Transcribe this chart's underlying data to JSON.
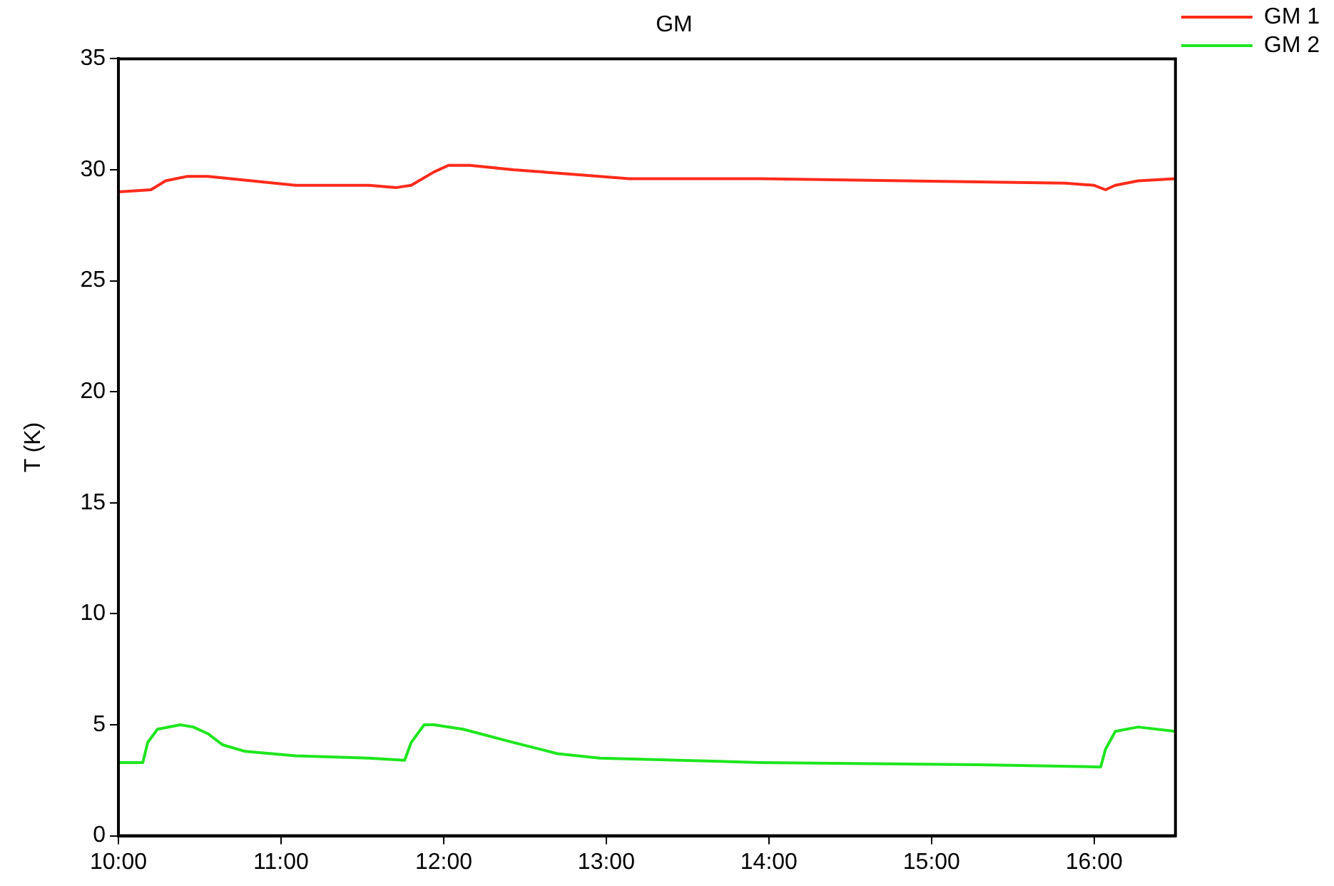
{
  "chart_data": {
    "type": "line",
    "title": "GM",
    "ylabel": "T (K)",
    "xlim": [
      10,
      16.5
    ],
    "xticks": [
      {
        "value": 10,
        "label": "10:00"
      },
      {
        "value": 11,
        "label": "11:00"
      },
      {
        "value": 12,
        "label": "12:00"
      },
      {
        "value": 13,
        "label": "13:00"
      },
      {
        "value": 14,
        "label": "14:00"
      },
      {
        "value": 15,
        "label": "15:00"
      },
      {
        "value": 16,
        "label": "16:00"
      }
    ],
    "ylim": [
      0,
      35
    ],
    "yticks": [
      0,
      5,
      10,
      15,
      20,
      25,
      30,
      35
    ],
    "grid": false,
    "legend": "top right",
    "marker": "none",
    "line_style": "solid",
    "series": [
      {
        "name": "GM 1",
        "color": "#ff2a1a",
        "x": [
          10.0,
          10.2,
          10.29,
          10.42,
          10.55,
          10.82,
          11.09,
          11.54,
          11.71,
          11.8,
          11.94,
          12.03,
          12.16,
          12.43,
          12.61,
          12.79,
          13.14,
          13.95,
          14.84,
          15.82,
          16.0,
          16.07,
          16.13,
          16.27,
          16.5
        ],
        "values": [
          29.0,
          29.1,
          29.5,
          29.7,
          29.7,
          29.5,
          29.3,
          29.3,
          29.2,
          29.3,
          29.9,
          30.2,
          30.2,
          30.0,
          29.9,
          29.8,
          29.6,
          29.6,
          29.5,
          29.4,
          29.3,
          29.1,
          29.3,
          29.5,
          29.6
        ]
      },
      {
        "name": "GM 2",
        "color": "#1ee61e",
        "x": [
          10.0,
          10.15,
          10.18,
          10.24,
          10.38,
          10.46,
          10.55,
          10.64,
          10.78,
          11.09,
          11.54,
          11.76,
          11.8,
          11.88,
          11.94,
          12.12,
          12.43,
          12.7,
          12.96,
          13.95,
          15.29,
          16.04,
          16.07,
          16.13,
          16.27,
          16.5
        ],
        "values": [
          3.3,
          3.3,
          4.2,
          4.8,
          5.0,
          4.9,
          4.6,
          4.1,
          3.8,
          3.6,
          3.5,
          3.4,
          4.2,
          5.0,
          5.0,
          4.8,
          4.2,
          3.7,
          3.5,
          3.3,
          3.2,
          3.1,
          3.9,
          4.7,
          4.9,
          4.7
        ]
      }
    ]
  }
}
